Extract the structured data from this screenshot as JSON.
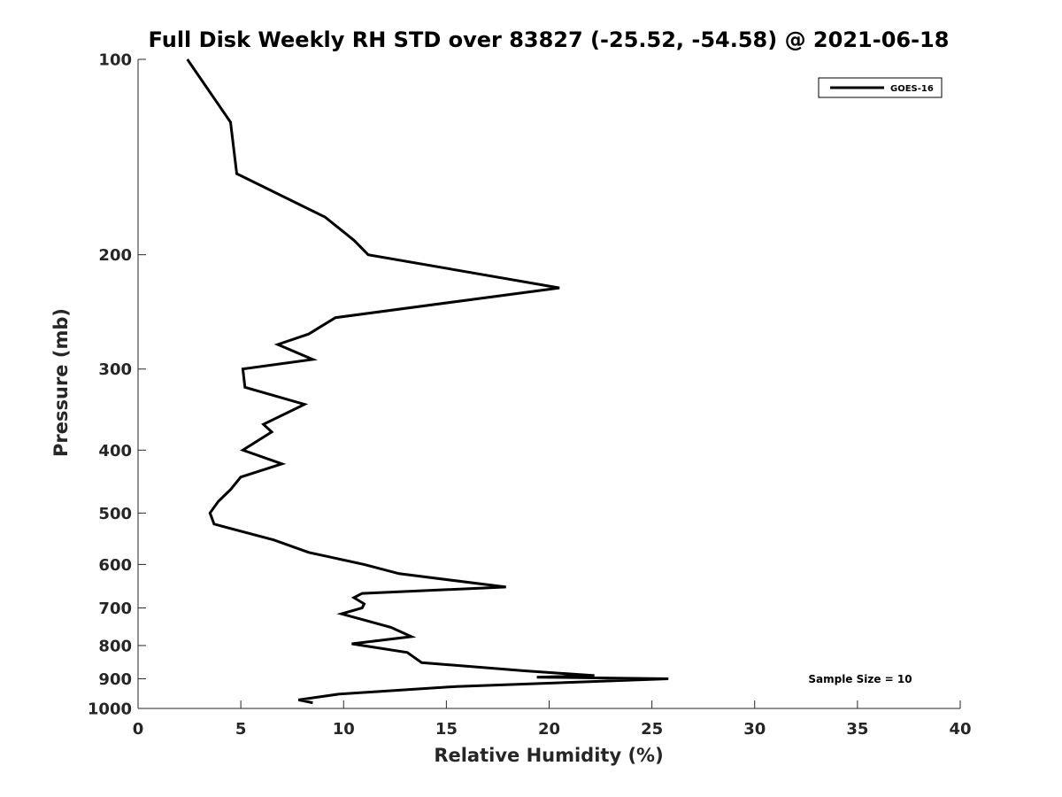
{
  "chart_data": {
    "type": "line",
    "title": "Full Disk Weekly RH STD over 83827 (-25.52, -54.58) @ 2021-06-18",
    "xlabel": "Relative Humidity (%)",
    "ylabel": "Pressure (mb)",
    "xlim": [
      0,
      40
    ],
    "ylim": [
      100,
      1000
    ],
    "y_scale": "log",
    "y_direction": "reversed",
    "xticks": [
      0,
      5,
      10,
      15,
      20,
      25,
      30,
      35,
      40
    ],
    "yticks": [
      100,
      200,
      300,
      400,
      500,
      600,
      700,
      800,
      900,
      1000
    ],
    "grid": false,
    "legend_position": "top-right",
    "annotation": "Sample Size = 10",
    "series": [
      {
        "name": "GOES-16",
        "color": "#000000",
        "points": [
          [
            2.4,
            100
          ],
          [
            4.5,
            125
          ],
          [
            4.8,
            150
          ],
          [
            9.1,
            175
          ],
          [
            10.5,
            190
          ],
          [
            11.2,
            200
          ],
          [
            20.5,
            225
          ],
          [
            9.6,
            250
          ],
          [
            8.3,
            265
          ],
          [
            6.8,
            275
          ],
          [
            8.5,
            290
          ],
          [
            5.1,
            300
          ],
          [
            5.2,
            320
          ],
          [
            8.1,
            340
          ],
          [
            6.1,
            365
          ],
          [
            6.5,
            375
          ],
          [
            5.1,
            400
          ],
          [
            7.0,
            420
          ],
          [
            5.0,
            440
          ],
          [
            4.5,
            460
          ],
          [
            3.9,
            480
          ],
          [
            3.5,
            500
          ],
          [
            3.7,
            520
          ],
          [
            6.6,
            550
          ],
          [
            8.3,
            575
          ],
          [
            11.0,
            600
          ],
          [
            12.7,
            620
          ],
          [
            17.9,
            650
          ],
          [
            10.9,
            665
          ],
          [
            10.5,
            675
          ],
          [
            11.0,
            690
          ],
          [
            10.9,
            700
          ],
          [
            9.9,
            715
          ],
          [
            12.3,
            750
          ],
          [
            13.3,
            775
          ],
          [
            10.4,
            795
          ],
          [
            13.1,
            820
          ],
          [
            13.8,
            850
          ],
          [
            18.8,
            875
          ],
          [
            22.2,
            890
          ],
          [
            19.4,
            895
          ],
          [
            25.8,
            900
          ],
          [
            15.5,
            925
          ],
          [
            9.8,
            950
          ],
          [
            7.8,
            970
          ],
          [
            8.5,
            980
          ]
        ]
      }
    ]
  }
}
